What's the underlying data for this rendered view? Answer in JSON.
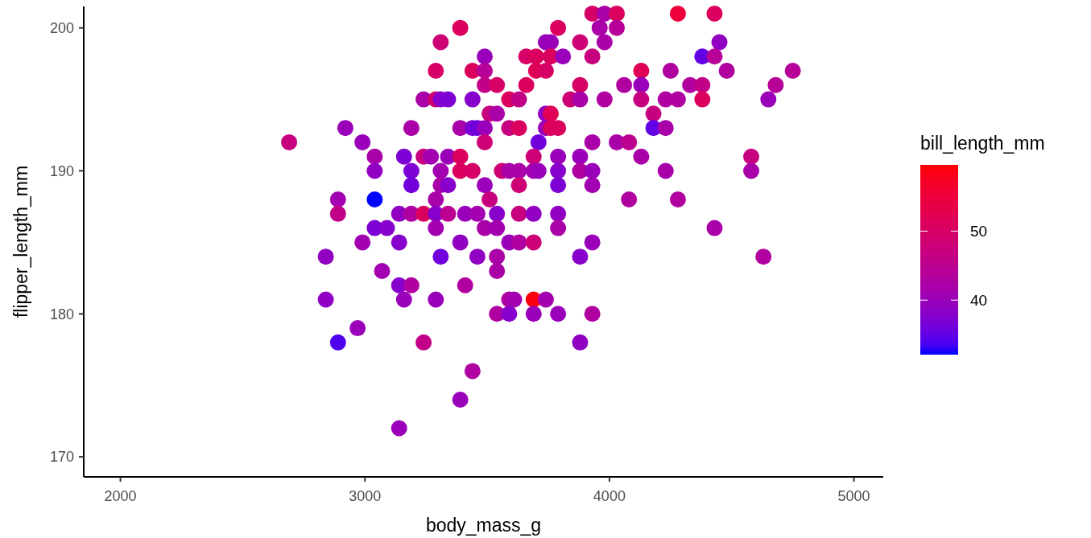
{
  "chart_data": {
    "type": "scatter",
    "xlabel": "body_mass_g",
    "ylabel": "flipper_length_mm",
    "clabel": "bill_length_mm",
    "xlim": [
      1850,
      5120
    ],
    "ylim": [
      168.6,
      201.5
    ],
    "xticks": [
      2000,
      3000,
      4000,
      5000
    ],
    "yticks": [
      170,
      180,
      190,
      200
    ],
    "clim": [
      32.1,
      59.6
    ],
    "cticks": [
      40,
      50
    ],
    "grid": false,
    "marker": "circle",
    "series": [
      {
        "x": [
          3930,
          3980,
          4030,
          4280,
          4430,
          3390,
          3790,
          3960,
          4030,
          3310,
          3740,
          3760,
          3880,
          3980,
          4450,
          3490,
          3660,
          3700,
          3760,
          3810,
          3930,
          4380,
          4430,
          3290,
          3440,
          3490,
          3700,
          3740,
          4130,
          4250,
          4480,
          4750,
          3490,
          3540,
          3660,
          3880,
          4060,
          4130,
          4330,
          4380,
          4680,
          3240,
          3290,
          3310,
          3340,
          3440,
          3590,
          3630,
          3840,
          3880,
          3980,
          4130,
          4230,
          4280,
          4380,
          4650,
          3510,
          3540,
          3740,
          3760,
          4180,
          2920,
          3190,
          3390,
          3440,
          3460,
          3490,
          3590,
          3630,
          3740,
          3760,
          3790,
          4180,
          4230,
          2690,
          2990,
          3490,
          3710,
          3930,
          4030,
          4080,
          3040,
          3160,
          3240,
          3270,
          3340,
          3390,
          3690,
          3790,
          3880,
          4130,
          4580,
          3040,
          3190,
          3310,
          3390,
          3440,
          3560,
          3590,
          3630,
          3690,
          3710,
          3790,
          3880,
          3930,
          4230,
          4580,
          3190,
          3310,
          3340,
          3490,
          3630,
          3790,
          3930,
          2890,
          3040,
          3290,
          3510,
          4080,
          4280,
          2890,
          3140,
          3190,
          3240,
          3290,
          3340,
          3410,
          3460,
          3540,
          3630,
          3690,
          3790,
          3040,
          3090,
          3290,
          3490,
          3540,
          3790,
          4430,
          2990,
          3140,
          3390,
          3590,
          3630,
          3690,
          3930,
          2840,
          3310,
          3460,
          3540,
          3880,
          4630,
          3070,
          3540,
          3140,
          3190,
          3410,
          2840,
          3160,
          3290,
          3590,
          3610,
          3690,
          3740,
          3540,
          3590,
          3690,
          3790,
          3930,
          2970,
          2890,
          3240,
          3880,
          3440,
          3390,
          3140
        ],
        "values": [
          201,
          201,
          201,
          201,
          201,
          200,
          200,
          200,
          200,
          199,
          199,
          199,
          199,
          199,
          199,
          198,
          198,
          198,
          198,
          198,
          198,
          198,
          198,
          197,
          197,
          197,
          197,
          197,
          197,
          197,
          197,
          197,
          196,
          196,
          196,
          196,
          196,
          196,
          196,
          196,
          196,
          195,
          195,
          195,
          195,
          195,
          195,
          195,
          195,
          195,
          195,
          195,
          195,
          195,
          195,
          195,
          194,
          194,
          194,
          194,
          194,
          193,
          193,
          193,
          193,
          193,
          193,
          193,
          193,
          193,
          193,
          193,
          193,
          193,
          192,
          192,
          192,
          192,
          192,
          192,
          192,
          191,
          191,
          191,
          191,
          191,
          191,
          191,
          191,
          191,
          191,
          191,
          190,
          190,
          190,
          190,
          190,
          190,
          190,
          190,
          190,
          190,
          190,
          190,
          190,
          190,
          190,
          189,
          189,
          189,
          189,
          189,
          189,
          189,
          188,
          188,
          188,
          188,
          188,
          188,
          187,
          187,
          187,
          187,
          187,
          187,
          187,
          187,
          187,
          187,
          187,
          187,
          186,
          186,
          186,
          186,
          186,
          186,
          186,
          185,
          185,
          185,
          185,
          185,
          185,
          185,
          184,
          184,
          184,
          184,
          184,
          184,
          183,
          183,
          182,
          182,
          182,
          181,
          181,
          181,
          181,
          181,
          181,
          181,
          180,
          180,
          180,
          180,
          180,
          179,
          178,
          178,
          178,
          176,
          174,
          172
        ],
        "cvalues": [
          50,
          42,
          51,
          55,
          51,
          51,
          51,
          42,
          44,
          48,
          40,
          40,
          48,
          42,
          39,
          40,
          50,
          51,
          51,
          40,
          47,
          35,
          44,
          50,
          51,
          44,
          52,
          50,
          52,
          43,
          43,
          44,
          46,
          50,
          51,
          50,
          43,
          40,
          43,
          46,
          44,
          42,
          49,
          38,
          37,
          38,
          51,
          46,
          48,
          42,
          43,
          47,
          43,
          43,
          51,
          40,
          47,
          42,
          39,
          52,
          47,
          40,
          42,
          42,
          37,
          36,
          40,
          47,
          51,
          40,
          51,
          51,
          35,
          42,
          47,
          40,
          48,
          36,
          42,
          42,
          45,
          42,
          37,
          47,
          41,
          40,
          51,
          48,
          40,
          40,
          42,
          47,
          39,
          37,
          41,
          51,
          50,
          48,
          42,
          42,
          41,
          40,
          38,
          43,
          40,
          42,
          42,
          36,
          42,
          38,
          40,
          48,
          37,
          41,
          41,
          32,
          42,
          47,
          43,
          43,
          46,
          39,
          43,
          51,
          38,
          45,
          40,
          41,
          38,
          47,
          39,
          39,
          37,
          38,
          41,
          42,
          41,
          42,
          42,
          41,
          38,
          39,
          40,
          43,
          48,
          40,
          39,
          36,
          39,
          42,
          38,
          43,
          41,
          42,
          38,
          43,
          43,
          39,
          40,
          40,
          43,
          41,
          59,
          41,
          43,
          38,
          40,
          40,
          43,
          40,
          34,
          46,
          39,
          43,
          40,
          40
        ]
      }
    ]
  }
}
